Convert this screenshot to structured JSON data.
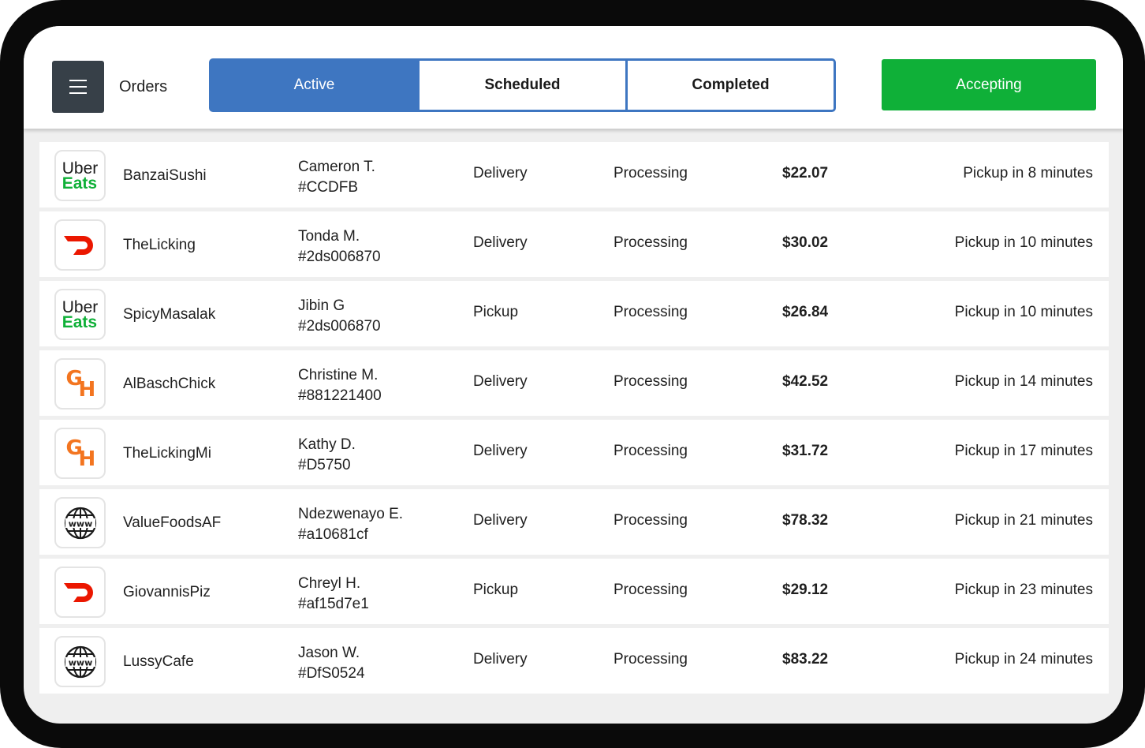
{
  "header": {
    "title": "Orders",
    "menu_icon": "hamburger-menu-icon",
    "tabs": [
      {
        "label": "Active",
        "active": true
      },
      {
        "label": "Scheduled",
        "active": false
      },
      {
        "label": "Completed",
        "active": false
      }
    ],
    "accepting_label": "Accepting"
  },
  "colors": {
    "tab_accent": "#3e76c1",
    "accepting": "#0fb038",
    "menu_button": "#374048",
    "doordash": "#eb1700",
    "grubhub": "#f37520"
  },
  "orders": [
    {
      "platform": "Uber Eats",
      "logo_top": "Uber",
      "logo_bottom": "Eats",
      "restaurant": "BanzaiSushi",
      "customer": "Cameron T.",
      "order_id": "#CCDFB",
      "type": "Delivery",
      "status": "Processing",
      "total": "$22.07",
      "eta": "Pickup in 8 minutes"
    },
    {
      "platform": "DoorDash",
      "restaurant": "TheLicking",
      "customer": "Tonda M.",
      "order_id": "#2ds006870",
      "type": "Delivery",
      "status": "Processing",
      "total": "$30.02",
      "eta": "Pickup in 10 minutes"
    },
    {
      "platform": "Uber Eats",
      "logo_top": "Uber",
      "logo_bottom": "Eats",
      "restaurant": "SpicyMasalak",
      "customer": "Jibin G",
      "order_id": "#2ds006870",
      "type": "Pickup",
      "status": "Processing",
      "total": "$26.84",
      "eta": "Pickup in 10 minutes"
    },
    {
      "platform": "Grubhub",
      "logo_top": "G",
      "logo_bottom": "H",
      "restaurant": "AlBaschChick",
      "customer": "Christine M.",
      "order_id": "#881221400",
      "type": "Delivery",
      "status": "Processing",
      "total": "$42.52",
      "eta": "Pickup in 14 minutes"
    },
    {
      "platform": "Grubhub",
      "logo_top": "G",
      "logo_bottom": "H",
      "restaurant": "TheLickingMi",
      "customer": "Kathy D.",
      "order_id": "#D5750",
      "type": "Delivery",
      "status": "Processing",
      "total": "$31.72",
      "eta": "Pickup in 17 minutes"
    },
    {
      "platform": "Website",
      "logo_top": "www",
      "restaurant": "ValueFoodsAF",
      "customer": "Ndezwenayo E.",
      "order_id": "#a10681cf",
      "type": "Delivery",
      "status": "Processing",
      "total": "$78.32",
      "eta": "Pickup in 21 minutes"
    },
    {
      "platform": "DoorDash",
      "restaurant": "GiovannisPiz",
      "customer": "Chreyl H.",
      "order_id": "#af15d7e1",
      "type": "Pickup",
      "status": "Processing",
      "total": "$29.12",
      "eta": "Pickup in 23 minutes"
    },
    {
      "platform": "Website",
      "logo_top": "www",
      "restaurant": "LussyCafe",
      "customer": "Jason W.",
      "order_id": "#DfS0524",
      "type": "Delivery",
      "status": "Processing",
      "total": "$83.22",
      "eta": "Pickup in 24 minutes"
    }
  ]
}
